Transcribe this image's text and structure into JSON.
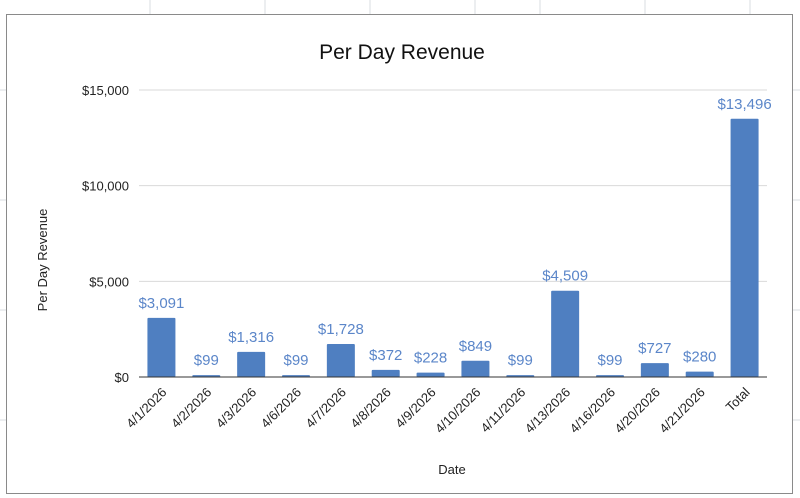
{
  "chart_data": {
    "type": "bar",
    "title": "Per Day Revenue",
    "xlabel": "Date",
    "ylabel": "Per Day Revenue",
    "categories": [
      "4/1/2026",
      "4/2/2026",
      "4/3/2026",
      "4/6/2026",
      "4/7/2026",
      "4/8/2026",
      "4/9/2026",
      "4/10/2026",
      "4/11/2026",
      "4/13/2026",
      "4/16/2026",
      "4/20/2026",
      "4/21/2026",
      "Total"
    ],
    "values": [
      3091,
      99,
      1316,
      99,
      1728,
      372,
      228,
      849,
      99,
      4509,
      99,
      727,
      280,
      13496
    ],
    "data_labels": [
      "$3,091",
      "$99",
      "$1,316",
      "$99",
      "$1,728",
      "$372",
      "$228",
      "$849",
      "$99",
      "$4,509",
      "$99",
      "$727",
      "$280",
      "$13,496"
    ],
    "ylim": [
      0,
      15000
    ],
    "y_ticks": [
      0,
      5000,
      10000,
      15000
    ],
    "y_tick_labels": [
      "$0",
      "$5,000",
      "$10,000",
      "$15,000"
    ],
    "grid": true,
    "legend": "none",
    "bar_color": "#4f7fc1",
    "label_color": "#5b86c9"
  }
}
